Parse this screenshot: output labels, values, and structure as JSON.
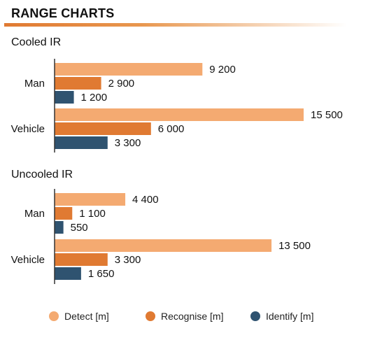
{
  "header": {
    "title": "RANGE CHARTS"
  },
  "colors": {
    "detect": "#f4aa71",
    "recognise": "#e07a32",
    "identify": "#2f5370",
    "accent": "#e07a32"
  },
  "chart_data": [
    {
      "type": "bar",
      "orientation": "horizontal",
      "title": "Cooled IR",
      "categories": [
        "Man",
        "Vehicle"
      ],
      "series": [
        {
          "name": "Detect [m]",
          "values": [
            9200,
            15500
          ],
          "labels": [
            "9 200",
            "15 500"
          ]
        },
        {
          "name": "Recognise [m]",
          "values": [
            2900,
            6000
          ],
          "labels": [
            "2 900",
            "6 000"
          ]
        },
        {
          "name": "Identify [m]",
          "values": [
            1200,
            3300
          ],
          "labels": [
            "1 200",
            "3 300"
          ]
        }
      ]
    },
    {
      "type": "bar",
      "orientation": "horizontal",
      "title": "Uncooled IR",
      "categories": [
        "Man",
        "Vehicle"
      ],
      "series": [
        {
          "name": "Detect [m]",
          "values": [
            4400,
            13500
          ],
          "labels": [
            "4 400",
            "13 500"
          ]
        },
        {
          "name": "Recognise [m]",
          "values": [
            1100,
            3300
          ],
          "labels": [
            "1 100",
            "3 300"
          ]
        },
        {
          "name": "Identify [m]",
          "values": [
            550,
            1650
          ],
          "labels": [
            "550",
            "1 650"
          ]
        }
      ]
    }
  ],
  "legend": {
    "placement": "bottom",
    "items": [
      {
        "label": "Detect [m]",
        "color_key": "detect"
      },
      {
        "label": "Recognise [m]",
        "color_key": "recognise"
      },
      {
        "label": "Identify [m]",
        "color_key": "identify"
      }
    ]
  }
}
